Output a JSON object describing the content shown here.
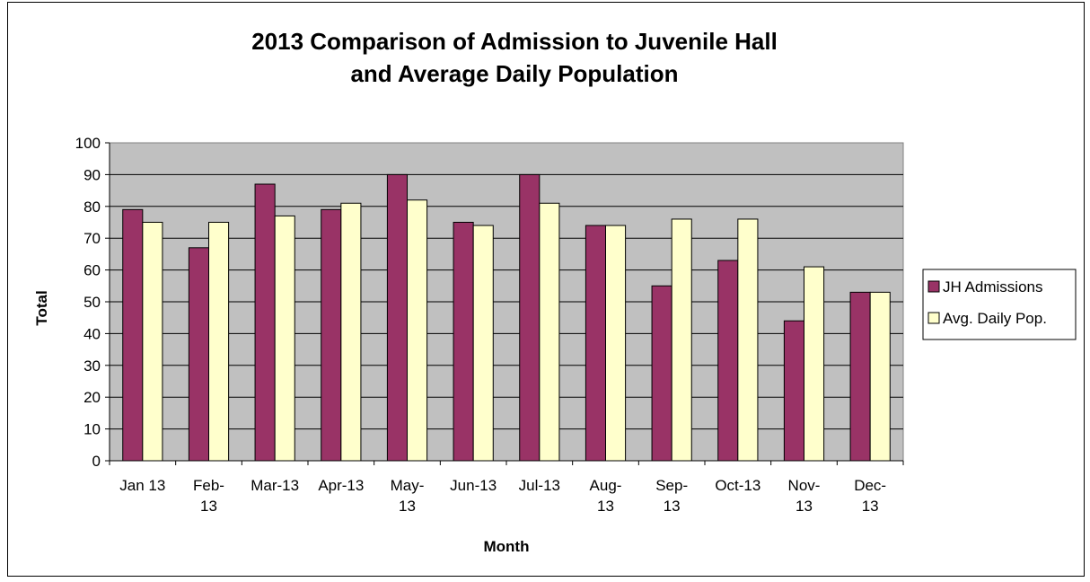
{
  "chart_data": {
    "type": "bar",
    "title_lines": [
      "2013 Comparison of Admission to Juvenile Hall",
      "and Average Daily Population"
    ],
    "xlabel": "Month",
    "ylabel": "Total",
    "ylim": [
      0,
      100
    ],
    "yticks": [
      0,
      10,
      20,
      30,
      40,
      50,
      60,
      70,
      80,
      90,
      100
    ],
    "grid": true,
    "legend_position": "right",
    "categories": [
      [
        "Jan 13"
      ],
      [
        "Feb-",
        "13"
      ],
      [
        "Mar-13"
      ],
      [
        "Apr-13"
      ],
      [
        "May-",
        "13"
      ],
      [
        "Jun-13"
      ],
      [
        "Jul-13"
      ],
      [
        "Aug-",
        "13"
      ],
      [
        "Sep-",
        "13"
      ],
      [
        "Oct-13"
      ],
      [
        "Nov-",
        "13"
      ],
      [
        "Dec-",
        "13"
      ]
    ],
    "series": [
      {
        "name": "JH Admissions",
        "color": "#993366",
        "values": [
          79,
          67,
          87,
          79,
          90,
          75,
          90,
          74,
          55,
          63,
          44,
          53
        ]
      },
      {
        "name": "Avg. Daily Pop.",
        "color": "#ffffcc",
        "values": [
          75,
          75,
          77,
          81,
          82,
          74,
          81,
          74,
          76,
          76,
          61,
          53
        ]
      }
    ],
    "plot_background": "#c0c0c0"
  }
}
